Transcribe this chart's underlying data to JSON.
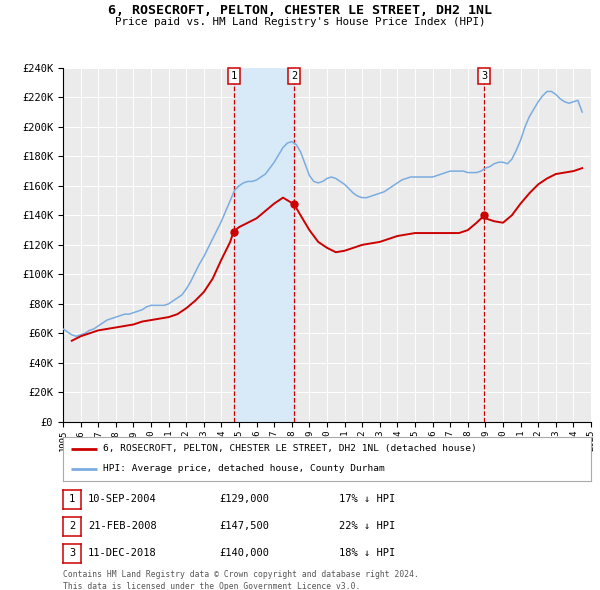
{
  "title": "6, ROSECROFT, PELTON, CHESTER LE STREET, DH2 1NL",
  "subtitle": "Price paid vs. HM Land Registry's House Price Index (HPI)",
  "ylim": [
    0,
    240000
  ],
  "xlim_start": 1995,
  "xlim_end": 2025,
  "yticks": [
    0,
    20000,
    40000,
    60000,
    80000,
    100000,
    120000,
    140000,
    160000,
    180000,
    200000,
    220000,
    240000
  ],
  "ytick_labels": [
    "£0",
    "£20K",
    "£40K",
    "£60K",
    "£80K",
    "£100K",
    "£120K",
    "£140K",
    "£160K",
    "£180K",
    "£200K",
    "£220K",
    "£240K"
  ],
  "background_color": "#ffffff",
  "plot_bg_color": "#ebebeb",
  "grid_color": "#ffffff",
  "hpi_color": "#7aace0",
  "price_color": "#cc0000",
  "vline_color": "#cc0000",
  "vline_shade_color": "#d8eaf8",
  "transactions": [
    {
      "num": 1,
      "date_label": "10-SEP-2004",
      "date_x": 2004.69,
      "price": 129000,
      "pct": "17%",
      "direction": "↓"
    },
    {
      "num": 2,
      "date_label": "21-FEB-2008",
      "date_x": 2008.13,
      "price": 147500,
      "pct": "22%",
      "direction": "↓"
    },
    {
      "num": 3,
      "date_label": "11-DEC-2018",
      "date_x": 2018.94,
      "price": 140000,
      "pct": "18%",
      "direction": "↓"
    }
  ],
  "legend_house_label": "6, ROSECROFT, PELTON, CHESTER LE STREET, DH2 1NL (detached house)",
  "legend_hpi_label": "HPI: Average price, detached house, County Durham",
  "footer1": "Contains HM Land Registry data © Crown copyright and database right 2024.",
  "footer2": "This data is licensed under the Open Government Licence v3.0.",
  "hpi_data_x": [
    1995.0,
    1995.25,
    1995.5,
    1995.75,
    1996.0,
    1996.25,
    1996.5,
    1996.75,
    1997.0,
    1997.25,
    1997.5,
    1997.75,
    1998.0,
    1998.25,
    1998.5,
    1998.75,
    1999.0,
    1999.25,
    1999.5,
    1999.75,
    2000.0,
    2000.25,
    2000.5,
    2000.75,
    2001.0,
    2001.25,
    2001.5,
    2001.75,
    2002.0,
    2002.25,
    2002.5,
    2002.75,
    2003.0,
    2003.25,
    2003.5,
    2003.75,
    2004.0,
    2004.25,
    2004.5,
    2004.75,
    2005.0,
    2005.25,
    2005.5,
    2005.75,
    2006.0,
    2006.25,
    2006.5,
    2006.75,
    2007.0,
    2007.25,
    2007.5,
    2007.75,
    2008.0,
    2008.25,
    2008.5,
    2008.75,
    2009.0,
    2009.25,
    2009.5,
    2009.75,
    2010.0,
    2010.25,
    2010.5,
    2010.75,
    2011.0,
    2011.25,
    2011.5,
    2011.75,
    2012.0,
    2012.25,
    2012.5,
    2012.75,
    2013.0,
    2013.25,
    2013.5,
    2013.75,
    2014.0,
    2014.25,
    2014.5,
    2014.75,
    2015.0,
    2015.25,
    2015.5,
    2015.75,
    2016.0,
    2016.25,
    2016.5,
    2016.75,
    2017.0,
    2017.25,
    2017.5,
    2017.75,
    2018.0,
    2018.25,
    2018.5,
    2018.75,
    2019.0,
    2019.25,
    2019.5,
    2019.75,
    2020.0,
    2020.25,
    2020.5,
    2020.75,
    2021.0,
    2021.25,
    2021.5,
    2021.75,
    2022.0,
    2022.25,
    2022.5,
    2022.75,
    2023.0,
    2023.25,
    2023.5,
    2023.75,
    2024.0,
    2024.25,
    2024.5
  ],
  "hpi_data_y": [
    63000,
    61000,
    59000,
    58000,
    59000,
    60000,
    62000,
    63000,
    65000,
    67000,
    69000,
    70000,
    71000,
    72000,
    73000,
    73000,
    74000,
    75000,
    76000,
    78000,
    79000,
    79000,
    79000,
    79000,
    80000,
    82000,
    84000,
    86000,
    90000,
    95000,
    101000,
    107000,
    112000,
    118000,
    124000,
    130000,
    136000,
    143000,
    150000,
    157000,
    160000,
    162000,
    163000,
    163000,
    164000,
    166000,
    168000,
    172000,
    176000,
    181000,
    186000,
    189000,
    190000,
    188000,
    183000,
    175000,
    167000,
    163000,
    162000,
    163000,
    165000,
    166000,
    165000,
    163000,
    161000,
    158000,
    155000,
    153000,
    152000,
    152000,
    153000,
    154000,
    155000,
    156000,
    158000,
    160000,
    162000,
    164000,
    165000,
    166000,
    166000,
    166000,
    166000,
    166000,
    166000,
    167000,
    168000,
    169000,
    170000,
    170000,
    170000,
    170000,
    169000,
    169000,
    169000,
    170000,
    172000,
    173000,
    175000,
    176000,
    176000,
    175000,
    178000,
    184000,
    191000,
    200000,
    207000,
    212000,
    217000,
    221000,
    224000,
    224000,
    222000,
    219000,
    217000,
    216000,
    217000,
    218000,
    210000
  ],
  "price_data_x": [
    1995.5,
    1996.0,
    1996.5,
    1997.0,
    1997.5,
    1998.0,
    1998.5,
    1999.0,
    1999.5,
    2000.0,
    2000.5,
    2001.0,
    2001.5,
    2002.0,
    2002.5,
    2003.0,
    2003.5,
    2004.0,
    2004.5,
    2004.69,
    2005.0,
    2005.5,
    2006.0,
    2006.5,
    2007.0,
    2007.5,
    2008.13,
    2008.5,
    2009.0,
    2009.5,
    2010.0,
    2010.5,
    2011.0,
    2011.5,
    2012.0,
    2012.5,
    2013.0,
    2013.5,
    2014.0,
    2014.5,
    2015.0,
    2015.5,
    2016.0,
    2016.5,
    2017.0,
    2017.5,
    2018.0,
    2018.5,
    2018.94,
    2019.0,
    2019.5,
    2020.0,
    2020.5,
    2021.0,
    2021.5,
    2022.0,
    2022.5,
    2023.0,
    2023.5,
    2024.0,
    2024.5
  ],
  "price_data_y": [
    55000,
    58000,
    60000,
    62000,
    63000,
    64000,
    65000,
    66000,
    68000,
    69000,
    70000,
    71000,
    73000,
    77000,
    82000,
    88000,
    97000,
    110000,
    122000,
    129000,
    132000,
    135000,
    138000,
    143000,
    148000,
    152000,
    147500,
    140000,
    130000,
    122000,
    118000,
    115000,
    116000,
    118000,
    120000,
    121000,
    122000,
    124000,
    126000,
    127000,
    128000,
    128000,
    128000,
    128000,
    128000,
    128000,
    130000,
    135000,
    140000,
    138000,
    136000,
    135000,
    140000,
    148000,
    155000,
    161000,
    165000,
    168000,
    169000,
    170000,
    172000
  ]
}
